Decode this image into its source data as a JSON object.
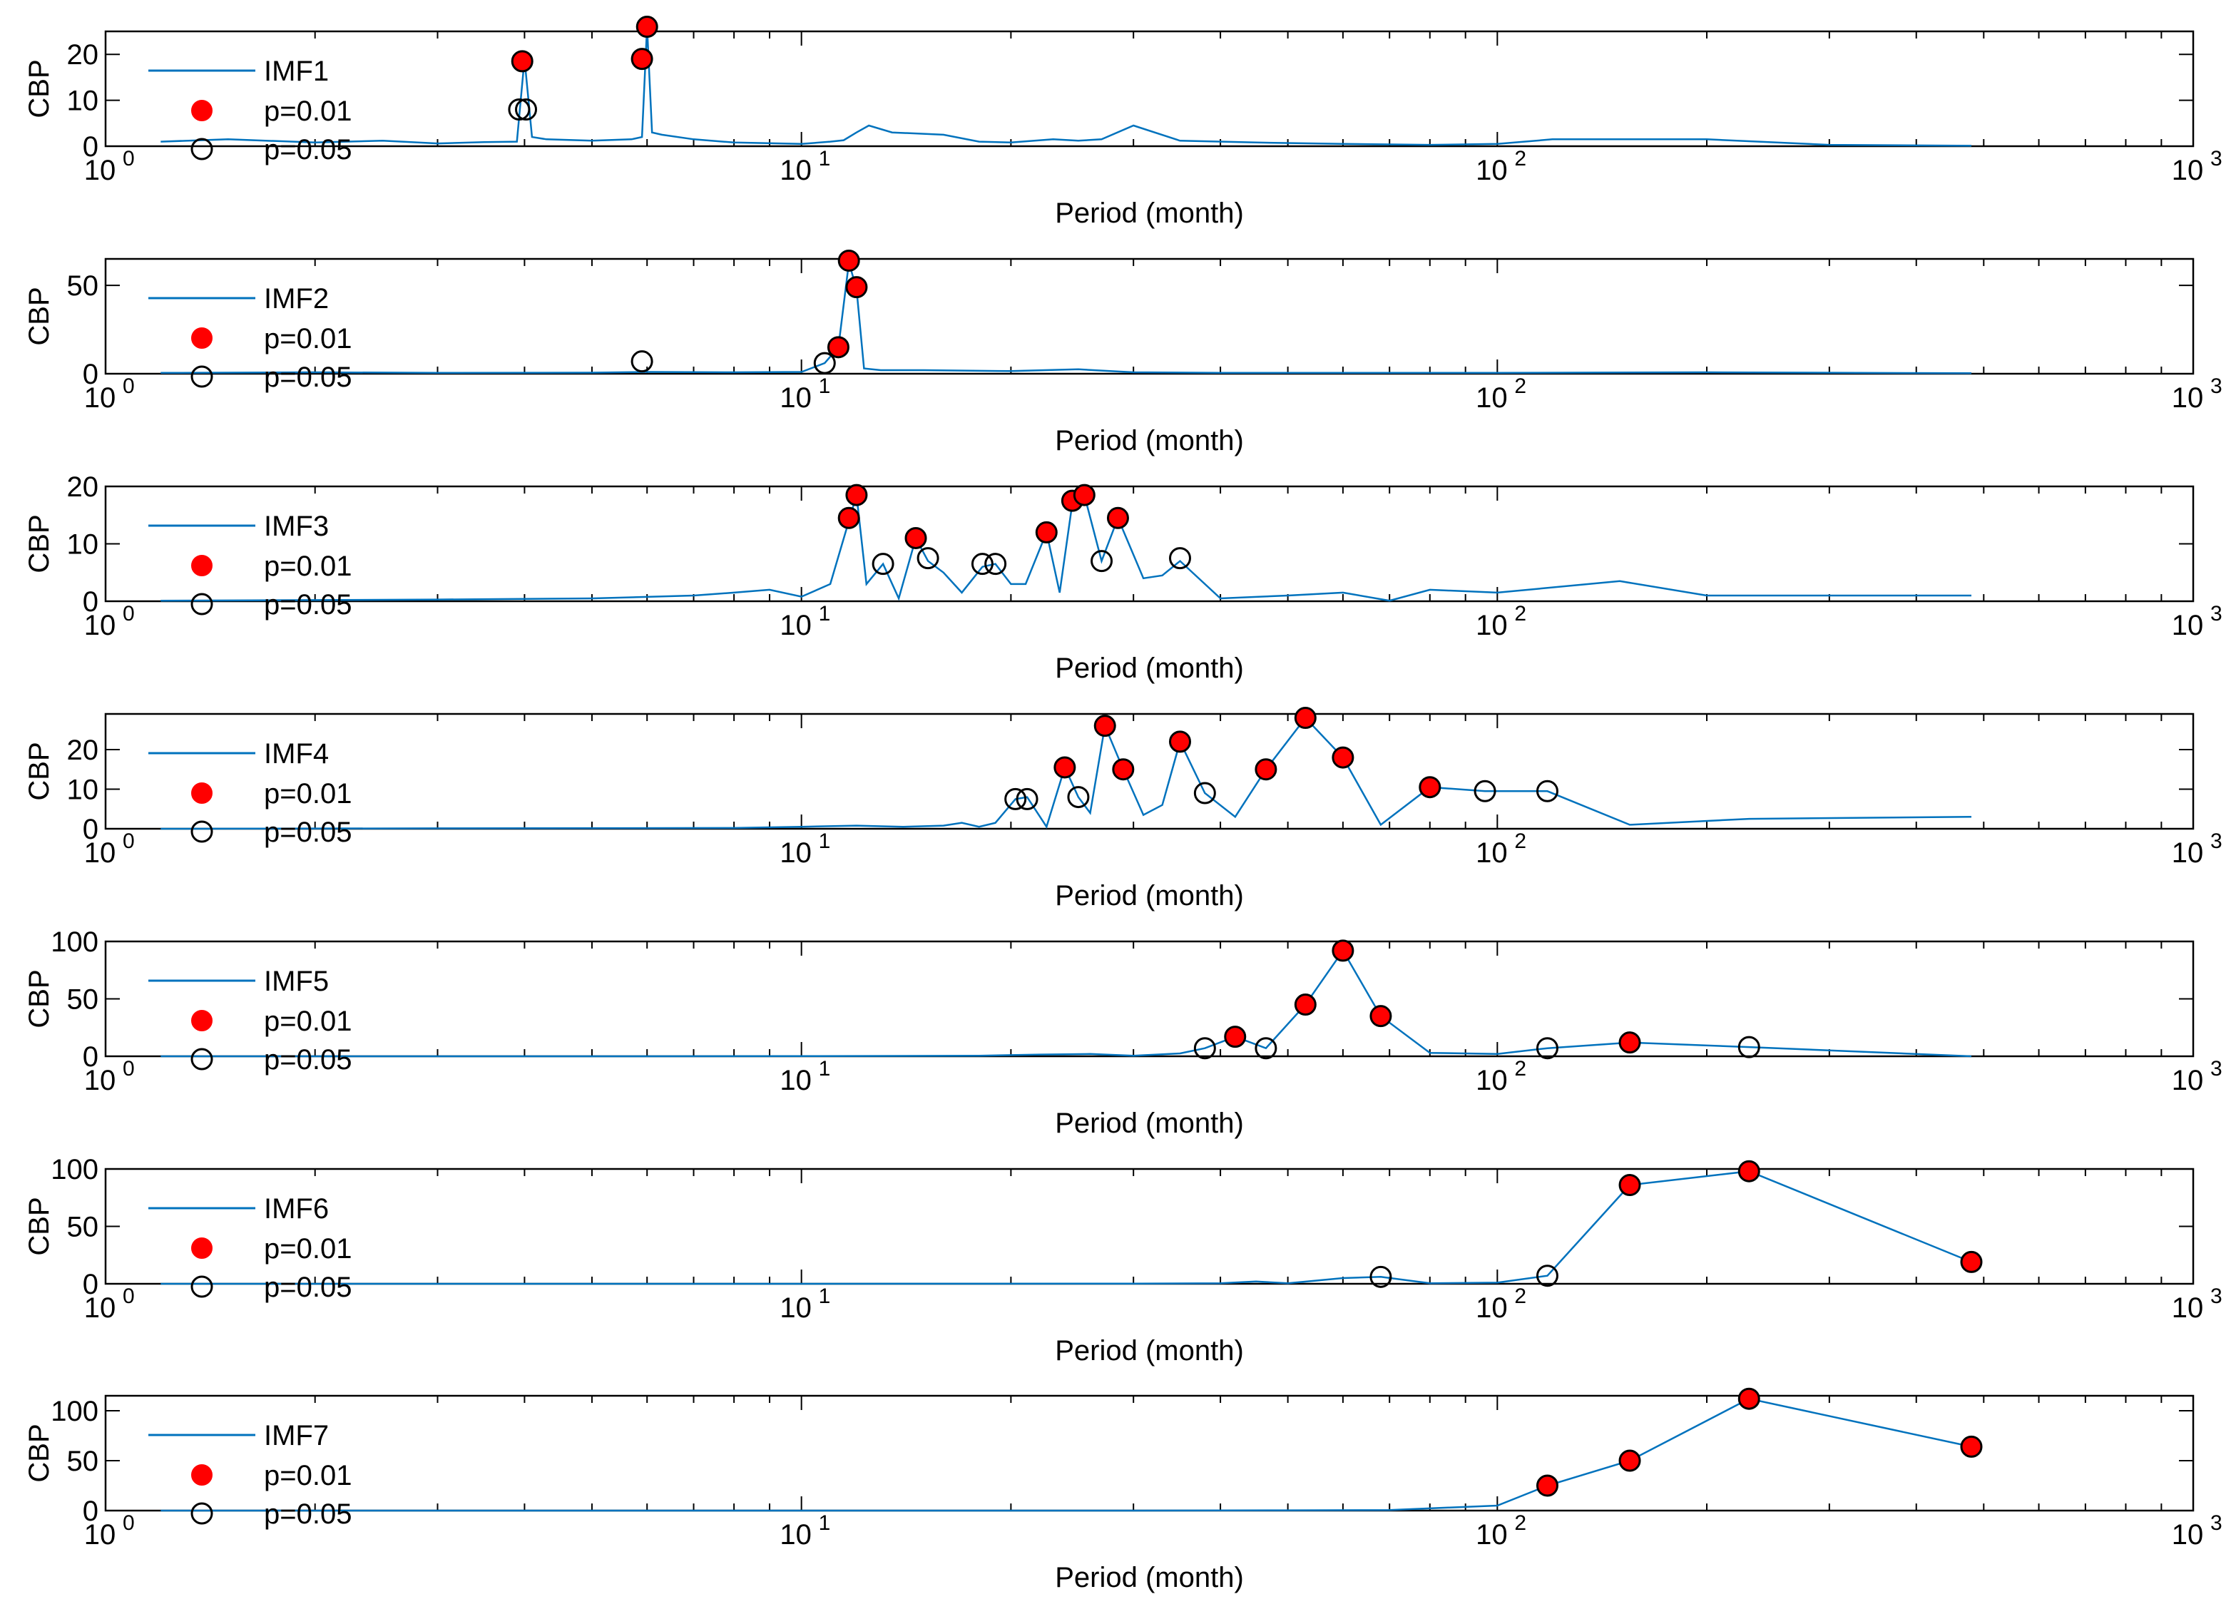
{
  "chart_data": [
    {
      "type": "line",
      "title": "",
      "xlabel": "Period (month)",
      "ylabel": "CBP",
      "xscale": "log",
      "xlim": [
        1,
        1000
      ],
      "ylim": [
        0,
        25
      ],
      "yticks": [
        0,
        10,
        20
      ],
      "xticks": [
        {
          "base": "10",
          "exp": "0"
        },
        {
          "base": "10",
          "exp": "1"
        },
        {
          "base": "10",
          "exp": "2"
        },
        {
          "base": "10",
          "exp": "3"
        }
      ],
      "legend_position": "top-left",
      "legend": [
        "IMF1",
        "p=0.01",
        "p=0.05"
      ],
      "series": [
        {
          "name": "IMF1",
          "x": [
            1.2,
            1.5,
            2,
            2.5,
            3,
            3.5,
            3.9,
            4.0,
            4.1,
            4.3,
            5,
            5.7,
            5.9,
            6.0,
            6.1,
            6.3,
            7,
            8,
            10,
            11,
            11.5,
            12,
            12.5,
            13.5,
            16,
            18,
            20,
            23,
            25,
            27,
            30,
            35,
            45,
            60,
            80,
            100,
            120,
            200,
            300,
            480
          ],
          "y": [
            1,
            1.5,
            0.8,
            1.2,
            0.6,
            0.9,
            1,
            19,
            2,
            1.5,
            1.2,
            1.5,
            2,
            26,
            3,
            2.5,
            1.5,
            0.8,
            0.5,
            1,
            1.3,
            3,
            4.5,
            3,
            2.5,
            1,
            0.8,
            1.5,
            1.2,
            1.5,
            4.5,
            1.2,
            0.8,
            0.5,
            0.3,
            0.5,
            1.5,
            1.5,
            0.3,
            0.1
          ]
        },
        {
          "name": "p=0.01",
          "x": [
            3.97,
            5.9,
            6.0
          ],
          "y": [
            18.5,
            19,
            26
          ]
        },
        {
          "name": "p=0.05",
          "x": [
            3.93,
            4.02
          ],
          "y": [
            8,
            8
          ]
        }
      ]
    },
    {
      "type": "line",
      "title": "",
      "xlabel": "Period (month)",
      "ylabel": "CBP",
      "xscale": "log",
      "xlim": [
        1,
        1000
      ],
      "ylim": [
        0,
        65
      ],
      "yticks": [
        0,
        50
      ],
      "xticks": [
        {
          "base": "10",
          "exp": "0"
        },
        {
          "base": "10",
          "exp": "1"
        },
        {
          "base": "10",
          "exp": "2"
        },
        {
          "base": "10",
          "exp": "3"
        }
      ],
      "legend_position": "top-left",
      "legend": [
        "IMF2",
        "p=0.01",
        "p=0.05"
      ],
      "series": [
        {
          "name": "IMF2",
          "x": [
            1.2,
            2,
            3,
            5,
            6,
            8,
            10,
            10.8,
            11.3,
            11.7,
            12.0,
            12.3,
            13,
            15,
            20,
            25,
            30,
            40,
            60,
            100,
            200,
            480
          ],
          "y": [
            0.5,
            0.8,
            0.5,
            0.6,
            1,
            0.8,
            1,
            6,
            15,
            63,
            48,
            3,
            2,
            2,
            1.5,
            2.5,
            0.8,
            0.5,
            0.5,
            0.5,
            0.8,
            0.3
          ]
        },
        {
          "name": "p=0.01",
          "x": [
            11.3,
            11.7,
            12.0
          ],
          "y": [
            15,
            64,
            49
          ]
        },
        {
          "name": "p=0.05",
          "x": [
            5.9,
            10.8
          ],
          "y": [
            7,
            6
          ]
        }
      ]
    },
    {
      "type": "line",
      "title": "",
      "xlabel": "Period (month)",
      "ylabel": "CBP",
      "xscale": "log",
      "xlim": [
        1,
        1000
      ],
      "ylim": [
        0,
        20
      ],
      "yticks": [
        0,
        10,
        20
      ],
      "xticks": [
        {
          "base": "10",
          "exp": "0"
        },
        {
          "base": "10",
          "exp": "1"
        },
        {
          "base": "10",
          "exp": "2"
        },
        {
          "base": "10",
          "exp": "3"
        }
      ],
      "legend_position": "top-left",
      "legend": [
        "IMF3",
        "p=0.01",
        "p=0.05"
      ],
      "series": [
        {
          "name": "IMF3",
          "x": [
            1.2,
            2,
            3,
            5,
            7,
            8,
            9,
            10,
            11,
            11.7,
            12.0,
            12.4,
            13.1,
            13.8,
            14.6,
            15.2,
            16,
            17,
            18.2,
            19,
            20,
            21,
            22.5,
            23.5,
            24.5,
            25.5,
            27,
            28.5,
            31,
            33,
            35,
            40,
            50,
            60,
            70,
            80,
            100,
            150,
            200,
            480
          ],
          "y": [
            0.1,
            0.2,
            0.3,
            0.5,
            1,
            1.5,
            2,
            0.8,
            3,
            14,
            18.5,
            3,
            6.5,
            0.5,
            11,
            7,
            5,
            1.5,
            6,
            6.5,
            3,
            3,
            12,
            1.5,
            17,
            18.5,
            7,
            14.5,
            4,
            4.5,
            7,
            0.5,
            1,
            1.5,
            0.1,
            2,
            1.5,
            3.5,
            1,
            1
          ]
        },
        {
          "name": "p=0.01",
          "x": [
            11.7,
            12.0,
            14.6,
            22.5,
            24.5,
            25.5,
            28.5
          ],
          "y": [
            14.5,
            18.5,
            11,
            12,
            17.5,
            18.5,
            14.5
          ]
        },
        {
          "name": "p=0.05",
          "x": [
            13.1,
            15.2,
            18.2,
            19.0,
            27.0,
            35.0
          ],
          "y": [
            6.5,
            7.5,
            6.5,
            6.5,
            7,
            7.5
          ]
        }
      ]
    },
    {
      "type": "line",
      "title": "",
      "xlabel": "Period (month)",
      "ylabel": "CBP",
      "xscale": "log",
      "xlim": [
        1,
        1000
      ],
      "ylim": [
        0,
        29
      ],
      "yticks": [
        0,
        10,
        20
      ],
      "xticks": [
        {
          "base": "10",
          "exp": "0"
        },
        {
          "base": "10",
          "exp": "1"
        },
        {
          "base": "10",
          "exp": "2"
        },
        {
          "base": "10",
          "exp": "3"
        }
      ],
      "legend_position": "top-left",
      "legend": [
        "IMF4",
        "p=0.01",
        "p=0.05"
      ],
      "series": [
        {
          "name": "IMF4",
          "x": [
            1.2,
            3,
            8,
            10,
            12,
            14,
            16,
            17,
            18,
            19,
            20.3,
            21.1,
            22.5,
            23.9,
            25.0,
            26.0,
            27.3,
            29.0,
            31,
            33,
            35.0,
            38.0,
            42,
            46.5,
            53.0,
            60,
            68,
            80,
            96,
            118,
            155,
            230,
            480
          ],
          "y": [
            0,
            0.1,
            0.2,
            0.5,
            0.8,
            0.5,
            0.8,
            1.5,
            0.5,
            1.5,
            7.5,
            8,
            0.5,
            15.5,
            8,
            4,
            26,
            15,
            3.5,
            6,
            22,
            9,
            3,
            15,
            28,
            18,
            1,
            10.5,
            9.5,
            9.5,
            1,
            2.5,
            3
          ]
        },
        {
          "name": "p=0.01",
          "x": [
            23.9,
            27.3,
            29.0,
            35.0,
            46.5,
            53.0,
            60.0,
            80.0
          ],
          "y": [
            15.5,
            26,
            15,
            22,
            15,
            28,
            18,
            10.5
          ]
        },
        {
          "name": "p=0.05",
          "x": [
            20.3,
            21.1,
            25.0,
            38.0,
            96.0,
            118.0
          ],
          "y": [
            7.5,
            7.5,
            8,
            9,
            9.5,
            9.5
          ]
        }
      ]
    },
    {
      "type": "line",
      "title": "",
      "xlabel": "Period (month)",
      "ylabel": "CBP",
      "xscale": "log",
      "xlim": [
        1,
        1000
      ],
      "ylim": [
        0,
        100
      ],
      "yticks": [
        0,
        50,
        100
      ],
      "xticks": [
        {
          "base": "10",
          "exp": "0"
        },
        {
          "base": "10",
          "exp": "1"
        },
        {
          "base": "10",
          "exp": "2"
        },
        {
          "base": "10",
          "exp": "3"
        }
      ],
      "legend_position": "top-left",
      "legend": [
        "IMF5",
        "p=0.01",
        "p=0.05"
      ],
      "series": [
        {
          "name": "IMF5",
          "x": [
            1.2,
            5,
            10,
            18,
            22,
            26,
            30,
            35,
            38.0,
            42.0,
            46.5,
            53.0,
            60.0,
            68.0,
            80,
            100,
            118.0,
            155.0,
            230.0,
            480
          ],
          "y": [
            0,
            0,
            0.1,
            0.5,
            1.5,
            2,
            0.5,
            2.5,
            7,
            17,
            7,
            45,
            92,
            35,
            3,
            2,
            7,
            12,
            8,
            0
          ]
        },
        {
          "name": "p=0.01",
          "x": [
            42.0,
            53.0,
            60.0,
            68.0,
            155.0
          ],
          "y": [
            17,
            45,
            92,
            35,
            12
          ]
        },
        {
          "name": "p=0.05",
          "x": [
            38.0,
            46.5,
            118.0,
            230.0
          ],
          "y": [
            7,
            7,
            7,
            8
          ]
        }
      ]
    },
    {
      "type": "line",
      "title": "",
      "xlabel": "Period (month)",
      "ylabel": "CBP",
      "xscale": "log",
      "xlim": [
        1,
        1000
      ],
      "ylim": [
        0,
        100
      ],
      "yticks": [
        0,
        50,
        100
      ],
      "xticks": [
        {
          "base": "10",
          "exp": "0"
        },
        {
          "base": "10",
          "exp": "1"
        },
        {
          "base": "10",
          "exp": "2"
        },
        {
          "base": "10",
          "exp": "3"
        }
      ],
      "legend_position": "top-left",
      "legend": [
        "IMF6",
        "p=0.01",
        "p=0.05"
      ],
      "series": [
        {
          "name": "IMF6",
          "x": [
            1.2,
            10,
            30,
            40,
            45,
            50,
            60,
            68.0,
            80,
            100,
            118.0,
            155.0,
            230.0,
            480.0
          ],
          "y": [
            0,
            0,
            0.2,
            0.5,
            2,
            0.5,
            5,
            6,
            0.5,
            1,
            7,
            86,
            98,
            19
          ]
        },
        {
          "name": "p=0.01",
          "x": [
            155.0,
            230.0,
            480.0
          ],
          "y": [
            86,
            98,
            19
          ]
        },
        {
          "name": "p=0.05",
          "x": [
            68.0,
            118.0
          ],
          "y": [
            6,
            7
          ]
        }
      ]
    },
    {
      "type": "line",
      "title": "",
      "xlabel": "Period (month)",
      "ylabel": "CBP",
      "xscale": "log",
      "xlim": [
        1,
        1000
      ],
      "ylim": [
        0,
        115
      ],
      "yticks": [
        0,
        50,
        100
      ],
      "xticks": [
        {
          "base": "10",
          "exp": "0"
        },
        {
          "base": "10",
          "exp": "1"
        },
        {
          "base": "10",
          "exp": "2"
        },
        {
          "base": "10",
          "exp": "3"
        }
      ],
      "legend_position": "top-left",
      "legend": [
        "IMF7",
        "p=0.01",
        "p=0.05"
      ],
      "series": [
        {
          "name": "IMF7",
          "x": [
            1.2,
            10,
            30,
            50,
            70,
            85,
            100,
            118.0,
            155.0,
            230.0,
            480.0
          ],
          "y": [
            0,
            0,
            0,
            0.3,
            0.5,
            3,
            5,
            25,
            50,
            112,
            64
          ]
        },
        {
          "name": "p=0.01",
          "x": [
            118.0,
            155.0,
            230.0,
            480.0
          ],
          "y": [
            25,
            50,
            112,
            64
          ]
        },
        {
          "name": "p=0.05",
          "x": [],
          "y": []
        }
      ]
    }
  ],
  "colors": {
    "line": "#0072BD",
    "sig01_fill": "#FF0000",
    "sig05_fill": "none",
    "marker_edge": "#000000",
    "axes": "#000000"
  }
}
